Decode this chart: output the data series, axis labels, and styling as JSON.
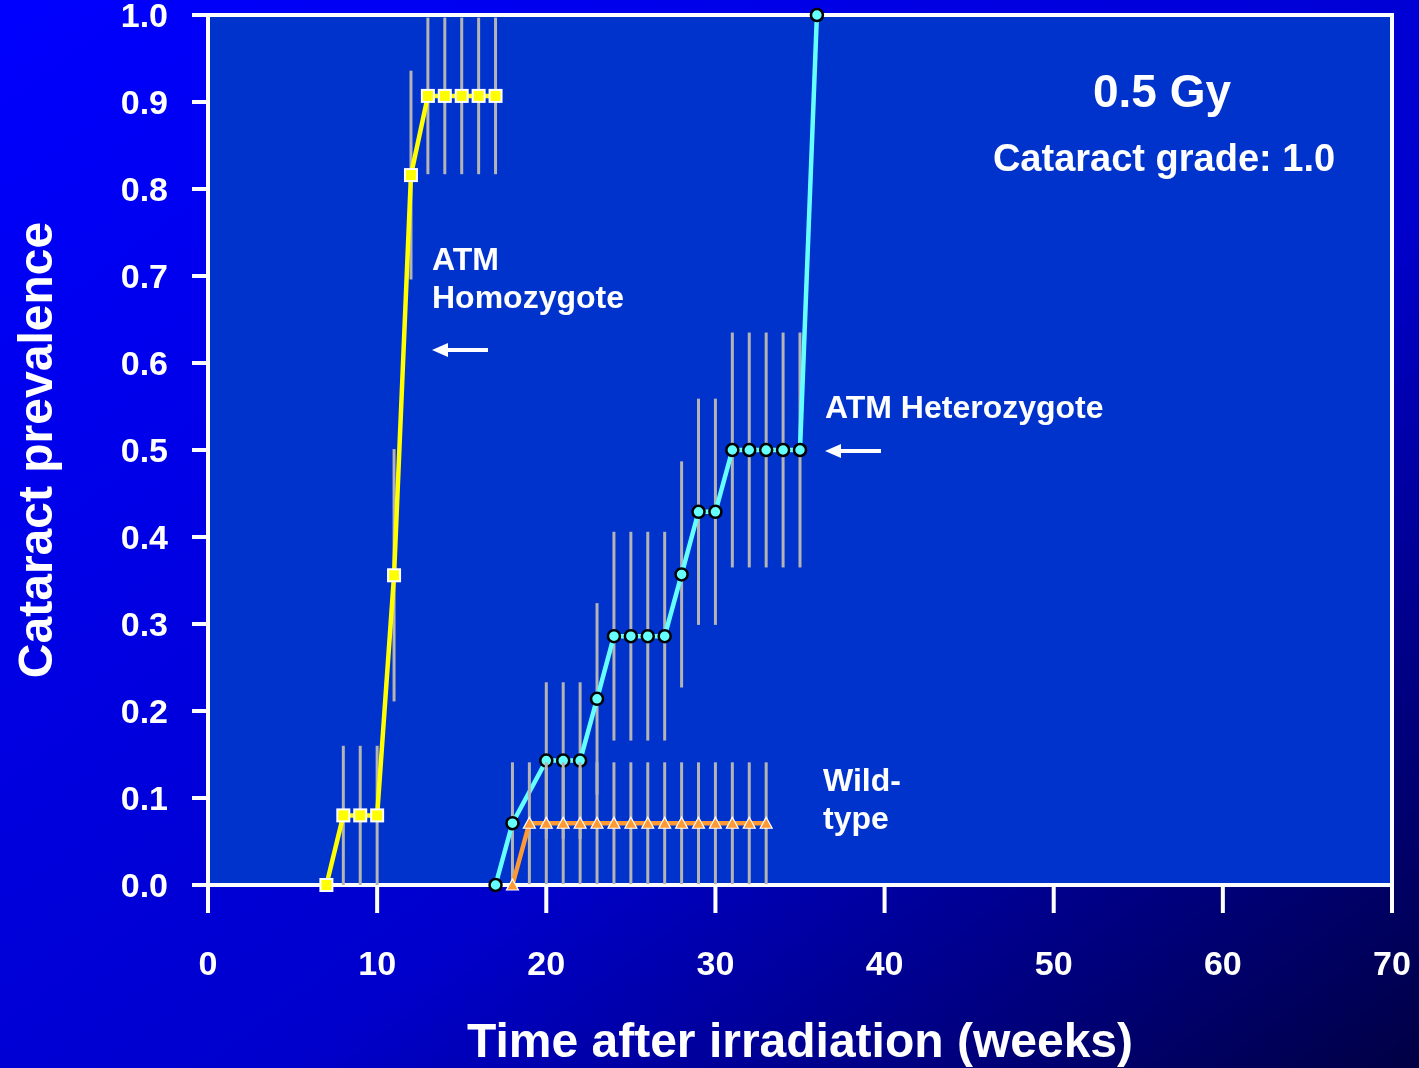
{
  "chart_data": {
    "type": "line",
    "xlabel": "Time after irradiation (weeks)",
    "ylabel": "Cataract prevalence",
    "annotations": [
      "0.5 Gy",
      "Cataract grade: 1.0"
    ],
    "xlim": [
      0,
      70
    ],
    "xticks": [
      0,
      10,
      20,
      30,
      40,
      50,
      60,
      70
    ],
    "ylim": [
      0,
      1
    ],
    "yticks": [
      {
        "value": 0,
        "label": "0.0"
      },
      {
        "value": 0.1,
        "label": "0.1"
      },
      {
        "value": 0.2,
        "label": "0.2"
      },
      {
        "value": 0.3,
        "label": "0.3"
      },
      {
        "value": 0.4,
        "label": "0.4"
      },
      {
        "value": 0.5,
        "label": "0.5"
      },
      {
        "value": 0.6,
        "label": "0.6"
      },
      {
        "value": 0.7,
        "label": "0.7"
      },
      {
        "value": 0.8,
        "label": "0.8"
      },
      {
        "value": 0.9,
        "label": "0.9"
      },
      {
        "value": 1.0,
        "label": "1.0"
      }
    ],
    "grid": false,
    "line_style": "solid",
    "series": [
      {
        "name": "ATM Homozygote",
        "color": "#ffff00",
        "marker": "square",
        "x": [
          7,
          8,
          9,
          10,
          11,
          12,
          13,
          14,
          15,
          16,
          17
        ],
        "values": [
          0,
          0.08,
          0.08,
          0.08,
          0.356,
          0.816,
          0.907,
          0.907,
          0.907,
          0.907,
          0.907
        ],
        "errors": [
          null,
          0.08,
          0.08,
          0.08,
          0.145,
          0.12,
          0.09,
          0.09,
          0.09,
          0.09,
          0.09
        ]
      },
      {
        "name": "ATM Heterozygote",
        "color": "#66ffff",
        "marker": "circle",
        "x": [
          17,
          18,
          20,
          21,
          22,
          23,
          24,
          25,
          26,
          27,
          28,
          29,
          30,
          31,
          32,
          33,
          34,
          35,
          36
        ],
        "values": [
          0,
          0.071,
          0.143,
          0.143,
          0.143,
          0.214,
          0.286,
          0.286,
          0.286,
          0.286,
          0.357,
          0.429,
          0.429,
          0.5,
          0.5,
          0.5,
          0.5,
          0.5,
          1.0
        ],
        "errors": [
          null,
          0.07,
          0.09,
          0.09,
          0.09,
          0.11,
          0.12,
          0.12,
          0.12,
          0.12,
          0.13,
          0.13,
          0.13,
          0.135,
          0.135,
          0.135,
          0.135,
          0.135,
          null
        ]
      },
      {
        "name": "Wild-type",
        "color": "#ff9933",
        "marker": "triangle",
        "x": [
          18,
          19,
          20,
          21,
          22,
          23,
          24,
          25,
          26,
          27,
          28,
          29,
          30,
          31,
          32,
          33
        ],
        "values": [
          0,
          0.071,
          0.071,
          0.071,
          0.071,
          0.071,
          0.071,
          0.071,
          0.071,
          0.071,
          0.071,
          0.071,
          0.071,
          0.071,
          0.071,
          0.071
        ],
        "errors": [
          null,
          0.07,
          0.07,
          0.07,
          0.07,
          0.07,
          0.07,
          0.07,
          0.07,
          0.07,
          0.07,
          0.07,
          0.07,
          0.07,
          0.07,
          0.07
        ]
      }
    ]
  }
}
